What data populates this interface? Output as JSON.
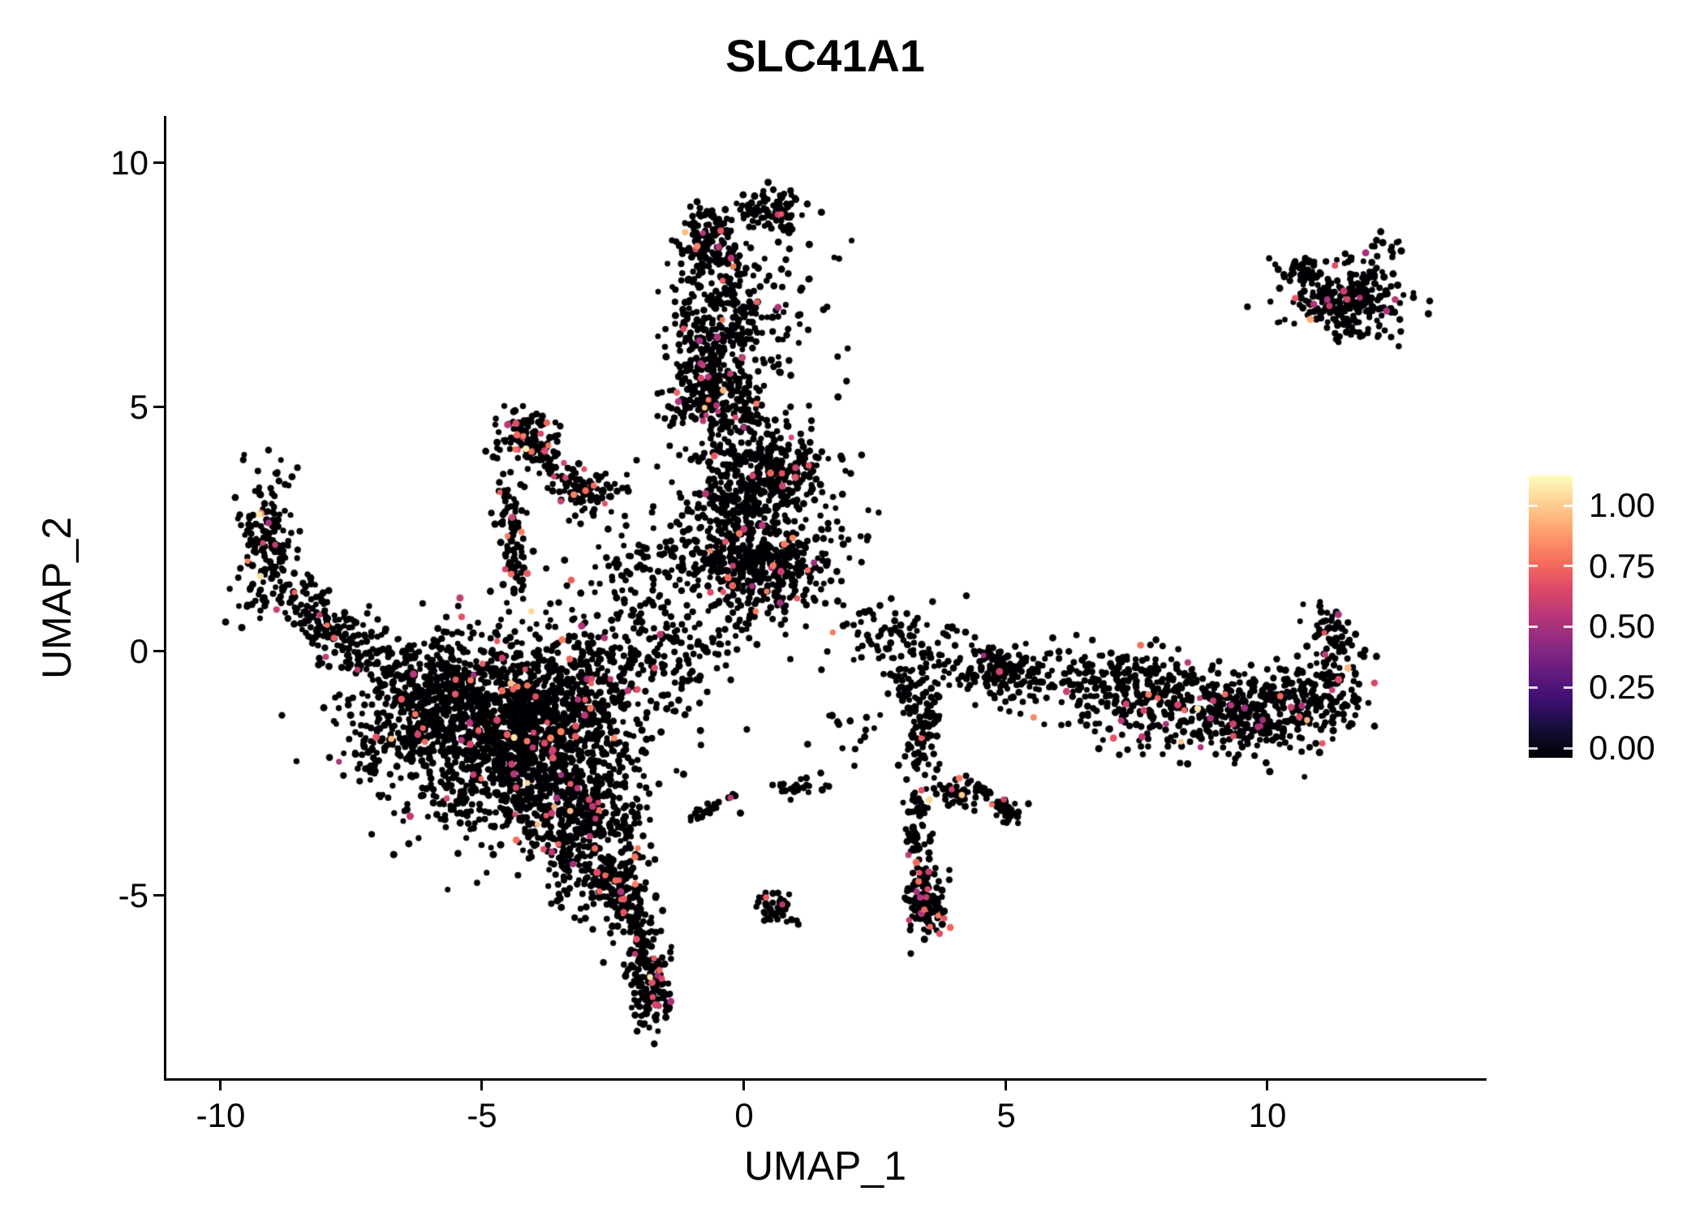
{
  "chart_data": {
    "type": "scatter",
    "title": "SLC41A1",
    "xlabel": "UMAP_1",
    "ylabel": "UMAP_2",
    "xlim": [
      -11.05,
      14.15
    ],
    "ylim": [
      -8.75,
      10.95
    ],
    "grid": false,
    "legend_position": "right",
    "colorscale": "magma",
    "point_color_zero": "#000004",
    "colored_value_range": [
      0.45,
      0.75
    ],
    "x_ticks": [
      {
        "value": -10,
        "label": "-10"
      },
      {
        "value": -5,
        "label": "-5"
      },
      {
        "value": 0,
        "label": "0"
      },
      {
        "value": 5,
        "label": "5"
      },
      {
        "value": 10,
        "label": "10"
      }
    ],
    "y_ticks": [
      {
        "value": 10,
        "label": "10"
      },
      {
        "value": 5,
        "label": "5"
      },
      {
        "value": 0,
        "label": "0"
      },
      {
        "value": -5,
        "label": "-5"
      }
    ],
    "clusters": [
      {
        "t": "g",
        "x": -4.8,
        "y": -1.6,
        "sx": 1.05,
        "sy": 1.0,
        "n": 1150,
        "f": 0.035
      },
      {
        "t": "g",
        "x": -3.6,
        "y": -2.7,
        "sx": 0.8,
        "sy": 0.85,
        "n": 600,
        "f": 0.03
      },
      {
        "t": "g",
        "x": -3.2,
        "y": -0.9,
        "sx": 0.8,
        "sy": 0.65,
        "n": 350,
        "f": 0.03
      },
      {
        "t": "g",
        "x": -5.9,
        "y": -0.8,
        "sx": 0.65,
        "sy": 0.55,
        "n": 230,
        "f": 0.03
      },
      {
        "t": "g",
        "x": -6.8,
        "y": -2.0,
        "sx": 0.5,
        "sy": 0.5,
        "n": 80,
        "f": 0.02
      },
      {
        "t": "g",
        "x": -2.9,
        "y": -3.9,
        "sx": 0.5,
        "sy": 0.55,
        "n": 180,
        "f": 0.04
      },
      {
        "t": "g",
        "x": -2.5,
        "y": -4.75,
        "sx": 0.3,
        "sy": 0.45,
        "n": 110,
        "f": 0.05
      },
      {
        "t": "p",
        "pts": [
          [
            -2.35,
            -5.0
          ],
          [
            -2.0,
            -5.6
          ],
          [
            -1.85,
            -6.3
          ],
          [
            -1.8,
            -7.0
          ],
          [
            -1.87,
            -7.5
          ]
        ],
        "w": 0.22,
        "n": 240,
        "f": 0.07
      },
      {
        "t": "g",
        "x": -9.1,
        "y": 2.2,
        "sx": 0.3,
        "sy": 0.7,
        "n": 160,
        "f": 0.04
      },
      {
        "t": "p",
        "pts": [
          [
            -8.9,
            1.2
          ],
          [
            -8.2,
            0.7
          ],
          [
            -7.5,
            0.1
          ],
          [
            -6.7,
            -0.3
          ]
        ],
        "w": 0.3,
        "n": 200,
        "f": 0.03
      },
      {
        "t": "g",
        "x": 0.55,
        "y": 9.0,
        "sx": 0.3,
        "sy": 0.25,
        "n": 90,
        "f": 0.02
      },
      {
        "t": "g",
        "x": -0.65,
        "y": 8.35,
        "sx": 0.35,
        "sy": 0.35,
        "n": 130,
        "f": 0.06
      },
      {
        "t": "p",
        "pts": [
          [
            -0.45,
            7.8
          ],
          [
            -0.3,
            7.1
          ],
          [
            -0.5,
            6.4
          ],
          [
            -0.6,
            5.8
          ]
        ],
        "w": 0.42,
        "n": 300,
        "f": 0.04
      },
      {
        "t": "g",
        "x": -0.55,
        "y": 5.3,
        "sx": 0.45,
        "sy": 0.4,
        "n": 210,
        "f": 0.06
      },
      {
        "t": "p",
        "pts": [
          [
            -0.4,
            4.5
          ],
          [
            0.0,
            3.9
          ],
          [
            -0.2,
            3.2
          ],
          [
            -0.3,
            2.5
          ],
          [
            -0.2,
            1.95
          ]
        ],
        "w": 0.5,
        "n": 320,
        "f": 0.03
      },
      {
        "t": "g",
        "x": 0.6,
        "y": 6.6,
        "sx": 0.55,
        "sy": 1.1,
        "n": 35,
        "f": 0.03
      },
      {
        "t": "g",
        "x": -4.2,
        "y": 4.35,
        "sx": 0.3,
        "sy": 0.3,
        "n": 110,
        "f": 0.09
      },
      {
        "t": "p",
        "pts": [
          [
            -3.9,
            4.0
          ],
          [
            -3.5,
            3.6
          ],
          [
            -3.1,
            3.2
          ],
          [
            -2.8,
            2.9
          ]
        ],
        "w": 0.18,
        "n": 80,
        "f": 0.08
      },
      {
        "t": "p",
        "pts": [
          [
            -4.5,
            3.4
          ],
          [
            -4.45,
            2.6
          ],
          [
            -4.4,
            1.8
          ],
          [
            -4.35,
            1.2
          ]
        ],
        "w": 0.14,
        "n": 90,
        "f": 0.07
      },
      {
        "t": "p",
        "pts": [
          [
            -3.4,
            3.3
          ],
          [
            -2.9,
            3.32
          ],
          [
            -2.4,
            3.3
          ]
        ],
        "w": 0.12,
        "n": 30,
        "f": 0.03
      },
      {
        "t": "g",
        "x": 0.75,
        "y": 3.7,
        "sx": 0.45,
        "sy": 0.4,
        "n": 200,
        "f": 0.05
      },
      {
        "t": "g",
        "x": 0.4,
        "y": 1.75,
        "sx": 0.75,
        "sy": 0.4,
        "n": 320,
        "f": 0.05
      },
      {
        "t": "g",
        "x": -1.6,
        "y": 0.3,
        "sx": 0.9,
        "sy": 0.75,
        "n": 200,
        "f": 0.03
      },
      {
        "t": "g",
        "x": 0.15,
        "y": 0.9,
        "sx": 0.4,
        "sy": 0.35,
        "n": 60,
        "f": 0.03
      },
      {
        "t": "g",
        "x": -0.3,
        "y": 2.6,
        "sx": 1.2,
        "sy": 0.65,
        "n": 110,
        "f": 0.03
      },
      {
        "t": "g",
        "x": -2.3,
        "y": 1.6,
        "sx": 0.5,
        "sy": 0.5,
        "n": 40,
        "f": 0.03
      },
      {
        "t": "p",
        "pts": [
          [
            2.1,
            0.45
          ],
          [
            2.9,
            0.3
          ],
          [
            3.7,
            -0.15
          ],
          [
            4.6,
            -0.35
          ],
          [
            5.5,
            -0.5
          ],
          [
            6.4,
            -0.6
          ],
          [
            7.0,
            -0.75
          ]
        ],
        "w": 0.38,
        "n": 300,
        "f": 0.03
      },
      {
        "t": "g",
        "x": 4.95,
        "y": -0.4,
        "sx": 0.28,
        "sy": 0.2,
        "n": 60,
        "f": 0.03
      },
      {
        "t": "p",
        "pts": [
          [
            7.0,
            -0.8
          ],
          [
            7.9,
            -1.0
          ],
          [
            8.8,
            -1.2
          ],
          [
            9.7,
            -1.3
          ],
          [
            10.4,
            -1.25
          ],
          [
            11.0,
            -1.05
          ],
          [
            11.4,
            -0.8
          ]
        ],
        "w": 0.45,
        "n": 680,
        "f": 0.05
      },
      {
        "t": "p",
        "pts": [
          [
            11.35,
            -0.55
          ],
          [
            11.4,
            -0.1
          ],
          [
            11.25,
            0.4
          ],
          [
            10.95,
            0.8
          ]
        ],
        "w": 0.18,
        "n": 70,
        "f": 0.06
      },
      {
        "t": "g",
        "x": 11.5,
        "y": 7.2,
        "sx": 0.55,
        "sy": 0.42,
        "n": 290,
        "f": 0.05
      },
      {
        "t": "g",
        "x": 10.6,
        "y": 7.85,
        "sx": 0.2,
        "sy": 0.12,
        "n": 30,
        "f": 0.08
      },
      {
        "t": "g",
        "x": 12.35,
        "y": 8.3,
        "sx": 0.18,
        "sy": 0.13,
        "n": 12,
        "f": 0.0
      },
      {
        "t": "p",
        "pts": [
          [
            3.05,
            -0.3
          ],
          [
            3.3,
            -0.9
          ],
          [
            3.5,
            -1.4
          ],
          [
            3.35,
            -1.9
          ],
          [
            3.3,
            -2.45
          ]
        ],
        "w": 0.17,
        "n": 110,
        "f": 0.05
      },
      {
        "t": "p",
        "pts": [
          [
            3.6,
            -2.6
          ],
          [
            4.1,
            -2.9
          ],
          [
            4.6,
            -3.05
          ],
          [
            5.0,
            -3.2
          ]
        ],
        "w": 0.14,
        "n": 65,
        "f": 0.04
      },
      {
        "t": "g",
        "x": 5.05,
        "y": -3.25,
        "sx": 0.16,
        "sy": 0.12,
        "n": 28,
        "f": 0.04
      },
      {
        "t": "p",
        "pts": [
          [
            3.35,
            -2.9
          ],
          [
            3.3,
            -3.5
          ],
          [
            3.4,
            -4.1
          ],
          [
            3.45,
            -4.65
          ]
        ],
        "w": 0.13,
        "n": 65,
        "f": 0.05
      },
      {
        "t": "g",
        "x": 3.45,
        "y": -5.15,
        "sx": 0.2,
        "sy": 0.33,
        "n": 110,
        "f": 0.12
      },
      {
        "t": "g",
        "x": 0.6,
        "y": -5.25,
        "sx": 0.22,
        "sy": 0.16,
        "n": 42,
        "f": 0.04
      },
      {
        "t": "p",
        "pts": [
          [
            0.6,
            -2.8
          ],
          [
            1.1,
            -2.75
          ],
          [
            1.6,
            -2.7
          ]
        ],
        "w": 0.1,
        "n": 26,
        "f": 0.03
      },
      {
        "t": "p",
        "pts": [
          [
            -0.1,
            -3.0
          ],
          [
            -0.6,
            -3.2
          ],
          [
            -1.1,
            -3.4
          ]
        ],
        "w": 0.1,
        "n": 22,
        "f": 0.03
      },
      {
        "t": "g",
        "x": 1.3,
        "y": 6.3,
        "sx": 0.7,
        "sy": 1.2,
        "n": 20,
        "f": 0.0
      },
      {
        "t": "g",
        "x": 1.9,
        "y": -1.5,
        "sx": 0.3,
        "sy": 0.4,
        "n": 15,
        "f": 0.0
      }
    ]
  },
  "colorbar": {
    "labels": [
      "1.00",
      "0.75",
      "0.50",
      "0.25",
      "0.00"
    ],
    "stops": [
      [
        0.0,
        "#000004"
      ],
      [
        0.1,
        "#140E36"
      ],
      [
        0.2,
        "#3B0F70"
      ],
      [
        0.3,
        "#641A80"
      ],
      [
        0.4,
        "#8C2981"
      ],
      [
        0.5,
        "#B63679"
      ],
      [
        0.6,
        "#DE4968"
      ],
      [
        0.7,
        "#F7705C"
      ],
      [
        0.8,
        "#FE9F6D"
      ],
      [
        0.9,
        "#FECF92"
      ],
      [
        1.0,
        "#FCFDBF"
      ]
    ]
  }
}
